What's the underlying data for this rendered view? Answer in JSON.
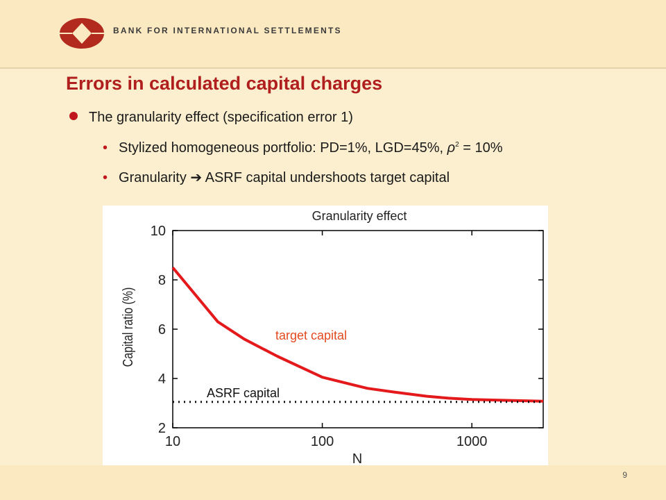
{
  "header": {
    "bank_name": "BANK FOR INTERNATIONAL SETTLEMENTS",
    "logo_icon": "bis-logo-icon",
    "brand_color": "#b22a1d"
  },
  "slide": {
    "title": "Errors in calculated capital charges",
    "bullet": "The granularity effect (specification error 1)",
    "sub1_before": "Stylized homogeneous portfolio: PD=1%, LGD=45%, ",
    "sub1_rho": "ρ",
    "sub1_sup": "2",
    "sub1_after": " = 10%",
    "sub2_before": "Granularity ",
    "sub2_arrow": "➔",
    "sub2_after": " ASRF capital undershoots target capital",
    "page_number": "9"
  },
  "chart_data": {
    "type": "line",
    "title": "Granularity effect",
    "xlabel": "N",
    "ylabel": "Capital ratio (%)",
    "xscale": "log",
    "xlim": [
      10,
      3000
    ],
    "ylim": [
      2,
      10
    ],
    "xticks": [
      10,
      100,
      1000
    ],
    "xtick_labels": [
      "10",
      "100",
      "1000"
    ],
    "yticks": [
      2,
      4,
      6,
      8,
      10
    ],
    "ytick_labels": [
      "2",
      "4",
      "6",
      "8",
      "10"
    ],
    "grid": false,
    "series": [
      {
        "name": "target capital",
        "color": "#e3191c",
        "style": "solid",
        "x": [
          10,
          20,
          30,
          50,
          100,
          200,
          300,
          500,
          700,
          1000,
          2000,
          3000
        ],
        "y": [
          8.5,
          6.3,
          5.6,
          4.9,
          4.05,
          3.6,
          3.45,
          3.28,
          3.2,
          3.15,
          3.1,
          3.08
        ]
      },
      {
        "name": "ASRF capital",
        "color": "#111111",
        "style": "dotted",
        "x": [
          10,
          3000
        ],
        "y": [
          3.05,
          3.05
        ]
      }
    ]
  }
}
